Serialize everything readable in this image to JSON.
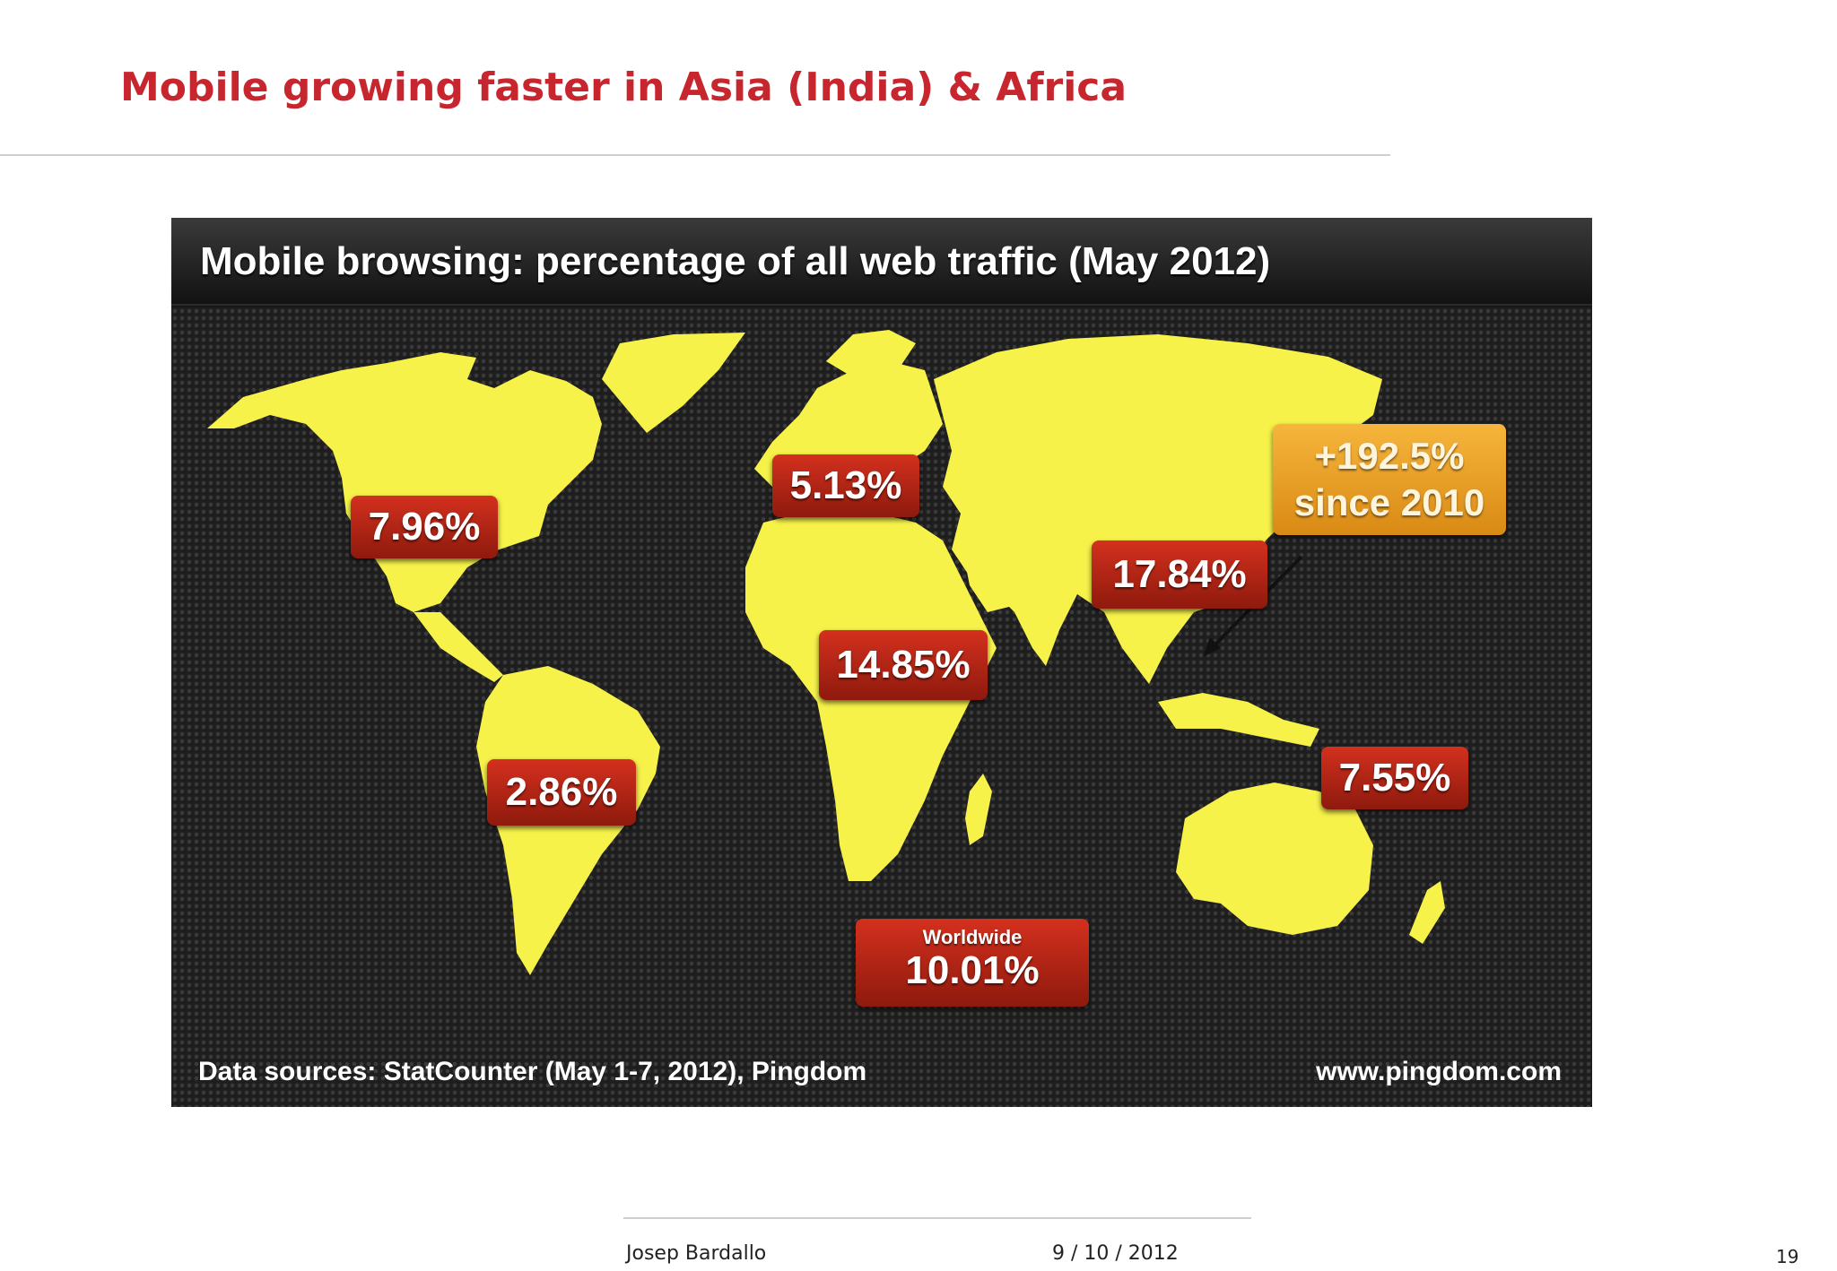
{
  "slide": {
    "title": "Mobile growing faster in Asia (India) & Africa",
    "author": "Josep Bardallo",
    "date": "9 / 10 / 2012",
    "page_number": "19"
  },
  "infographic": {
    "title": "Mobile browsing: percentage of all web traffic (May 2012)",
    "source": "Data sources: StatCounter (May 1-7, 2012), Pingdom",
    "site": "www.pingdom.com",
    "land_color": "#f7f24a",
    "label_color": "#c0281a",
    "growth_color": "#f0a830",
    "regions": [
      {
        "region": "North America",
        "value": "7.96%"
      },
      {
        "region": "Europe",
        "value": "5.13%"
      },
      {
        "region": "Africa",
        "value": "14.85%"
      },
      {
        "region": "Asia",
        "value": "17.84%"
      },
      {
        "region": "South America",
        "value": "2.86%"
      },
      {
        "region": "Oceania",
        "value": "7.55%"
      }
    ],
    "growth": {
      "line1": "+192.5%",
      "line2": "since 2010"
    },
    "worldwide": {
      "caption": "Worldwide",
      "value": "10.01%"
    }
  }
}
